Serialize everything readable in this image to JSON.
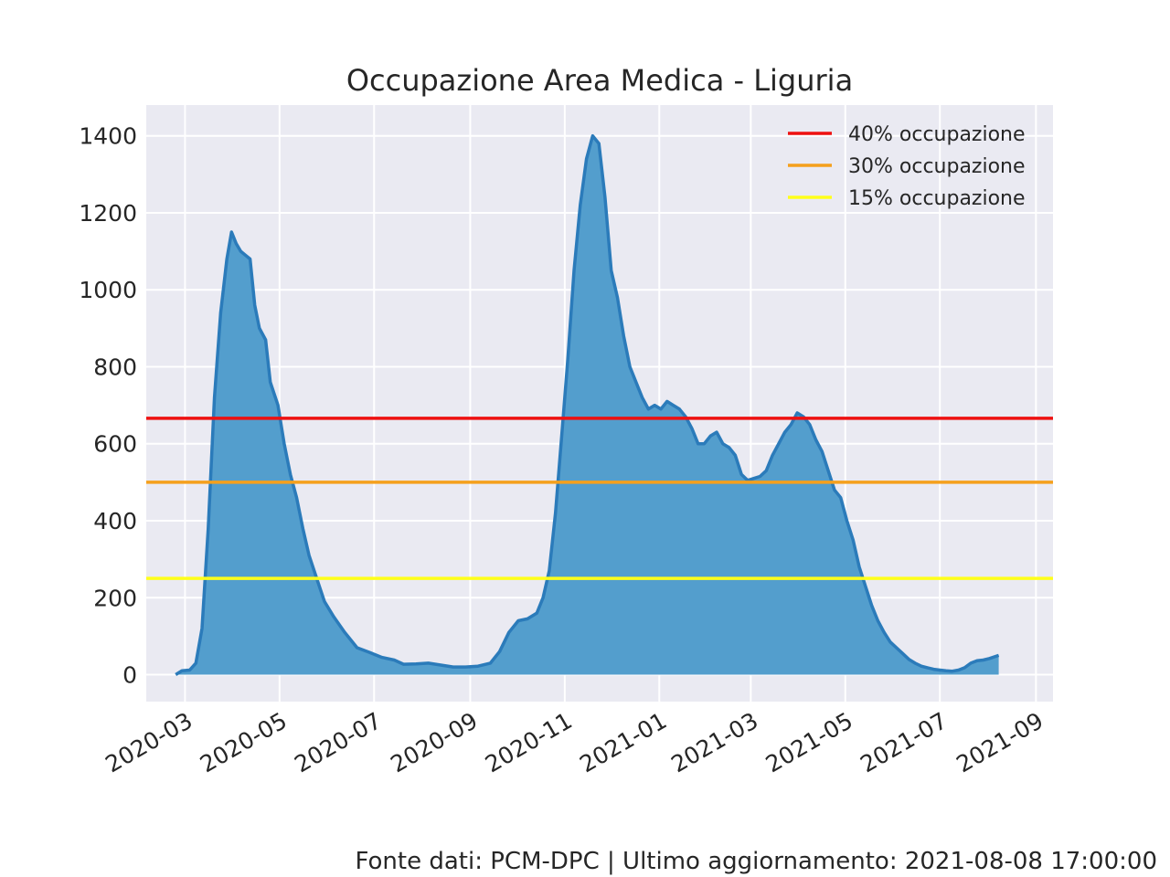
{
  "chart_data": {
    "type": "area",
    "title": "Occupazione Area Medica - Liguria",
    "xlabel": "",
    "ylabel": "",
    "x_tick_labels": [
      "2020-03",
      "2020-05",
      "2020-07",
      "2020-09",
      "2020-11",
      "2021-01",
      "2021-03",
      "2021-05",
      "2021-07",
      "2021-09"
    ],
    "y_tick_labels": [
      "0",
      "200",
      "400",
      "600",
      "800",
      "1000",
      "1200",
      "1400"
    ],
    "ylim": [
      -70,
      1480
    ],
    "xlim": [
      "2020-02-05",
      "2021-09-12"
    ],
    "grid": true,
    "legend_position": "top-right",
    "series": [
      {
        "values_xy": [
          [
            "2020-02-24",
            0
          ],
          [
            "2020-02-28",
            10
          ],
          [
            "2020-03-04",
            12
          ],
          [
            "2020-03-08",
            30
          ],
          [
            "2020-03-12",
            120
          ],
          [
            "2020-03-16",
            380
          ],
          [
            "2020-03-20",
            720
          ],
          [
            "2020-03-24",
            940
          ],
          [
            "2020-03-28",
            1080
          ],
          [
            "2020-03-31",
            1150
          ],
          [
            "2020-04-03",
            1120
          ],
          [
            "2020-04-06",
            1100
          ],
          [
            "2020-04-09",
            1090
          ],
          [
            "2020-04-12",
            1080
          ],
          [
            "2020-04-15",
            960
          ],
          [
            "2020-04-18",
            900
          ],
          [
            "2020-04-22",
            870
          ],
          [
            "2020-04-25",
            760
          ],
          [
            "2020-04-30",
            700
          ],
          [
            "2020-05-04",
            600
          ],
          [
            "2020-05-08",
            520
          ],
          [
            "2020-05-12",
            460
          ],
          [
            "2020-05-16",
            380
          ],
          [
            "2020-05-20",
            310
          ],
          [
            "2020-05-25",
            250
          ],
          [
            "2020-05-30",
            190
          ],
          [
            "2020-06-05",
            150
          ],
          [
            "2020-06-12",
            110
          ],
          [
            "2020-06-20",
            70
          ],
          [
            "2020-06-28",
            58
          ],
          [
            "2020-07-06",
            45
          ],
          [
            "2020-07-14",
            38
          ],
          [
            "2020-07-20",
            27
          ],
          [
            "2020-07-28",
            28
          ],
          [
            "2020-08-05",
            30
          ],
          [
            "2020-08-13",
            25
          ],
          [
            "2020-08-21",
            20
          ],
          [
            "2020-08-29",
            20
          ],
          [
            "2020-09-06",
            22
          ],
          [
            "2020-09-14",
            30
          ],
          [
            "2020-09-20",
            60
          ],
          [
            "2020-09-26",
            110
          ],
          [
            "2020-10-02",
            140
          ],
          [
            "2020-10-08",
            145
          ],
          [
            "2020-10-14",
            160
          ],
          [
            "2020-10-18",
            200
          ],
          [
            "2020-10-22",
            270
          ],
          [
            "2020-10-26",
            420
          ],
          [
            "2020-10-30",
            620
          ],
          [
            "2020-11-03",
            820
          ],
          [
            "2020-11-07",
            1050
          ],
          [
            "2020-11-11",
            1220
          ],
          [
            "2020-11-15",
            1340
          ],
          [
            "2020-11-19",
            1400
          ],
          [
            "2020-11-23",
            1380
          ],
          [
            "2020-11-27",
            1240
          ],
          [
            "2020-12-01",
            1050
          ],
          [
            "2020-12-05",
            980
          ],
          [
            "2020-12-09",
            880
          ],
          [
            "2020-12-13",
            800
          ],
          [
            "2020-12-17",
            760
          ],
          [
            "2020-12-21",
            720
          ],
          [
            "2020-12-25",
            690
          ],
          [
            "2020-12-29",
            700
          ],
          [
            "2021-01-02",
            690
          ],
          [
            "2021-01-06",
            710
          ],
          [
            "2021-01-10",
            700
          ],
          [
            "2021-01-14",
            690
          ],
          [
            "2021-01-18",
            670
          ],
          [
            "2021-01-22",
            640
          ],
          [
            "2021-01-26",
            600
          ],
          [
            "2021-01-30",
            600
          ],
          [
            "2021-02-03",
            620
          ],
          [
            "2021-02-07",
            630
          ],
          [
            "2021-02-11",
            600
          ],
          [
            "2021-02-15",
            590
          ],
          [
            "2021-02-19",
            570
          ],
          [
            "2021-02-23",
            520
          ],
          [
            "2021-02-27",
            505
          ],
          [
            "2021-03-03",
            510
          ],
          [
            "2021-03-07",
            515
          ],
          [
            "2021-03-11",
            530
          ],
          [
            "2021-03-15",
            570
          ],
          [
            "2021-03-19",
            600
          ],
          [
            "2021-03-23",
            630
          ],
          [
            "2021-03-27",
            650
          ],
          [
            "2021-03-31",
            680
          ],
          [
            "2021-04-04",
            670
          ],
          [
            "2021-04-08",
            650
          ],
          [
            "2021-04-12",
            610
          ],
          [
            "2021-04-16",
            580
          ],
          [
            "2021-04-20",
            530
          ],
          [
            "2021-04-24",
            480
          ],
          [
            "2021-04-28",
            460
          ],
          [
            "2021-05-02",
            400
          ],
          [
            "2021-05-06",
            350
          ],
          [
            "2021-05-10",
            280
          ],
          [
            "2021-05-14",
            230
          ],
          [
            "2021-05-18",
            180
          ],
          [
            "2021-05-22",
            140
          ],
          [
            "2021-05-26",
            110
          ],
          [
            "2021-05-30",
            85
          ],
          [
            "2021-06-03",
            70
          ],
          [
            "2021-06-07",
            55
          ],
          [
            "2021-06-11",
            40
          ],
          [
            "2021-06-15",
            30
          ],
          [
            "2021-06-19",
            22
          ],
          [
            "2021-06-23",
            18
          ],
          [
            "2021-06-27",
            14
          ],
          [
            "2021-07-01",
            12
          ],
          [
            "2021-07-05",
            10
          ],
          [
            "2021-07-09",
            9
          ],
          [
            "2021-07-13",
            12
          ],
          [
            "2021-07-17",
            18
          ],
          [
            "2021-07-21",
            30
          ],
          [
            "2021-07-25",
            36
          ],
          [
            "2021-07-29",
            38
          ],
          [
            "2021-08-02",
            42
          ],
          [
            "2021-08-08",
            50
          ]
        ]
      }
    ],
    "thresholds": [
      {
        "name": "40% occupazione",
        "value": 666,
        "color": "#ee1111"
      },
      {
        "name": "30% occupazione",
        "value": 500,
        "color": "#f5a01c"
      },
      {
        "name": "15% occupazione",
        "value": 250,
        "color": "#ffff1a"
      }
    ],
    "colors": {
      "area_fill": "#539ecd",
      "area_line": "#2b7bba",
      "plot_background": "#eaeaf2",
      "grid": "#ffffff"
    }
  },
  "footer": "Fonte dati: PCM-DPC | Ultimo aggiornamento: 2021-08-08 17:00:00"
}
